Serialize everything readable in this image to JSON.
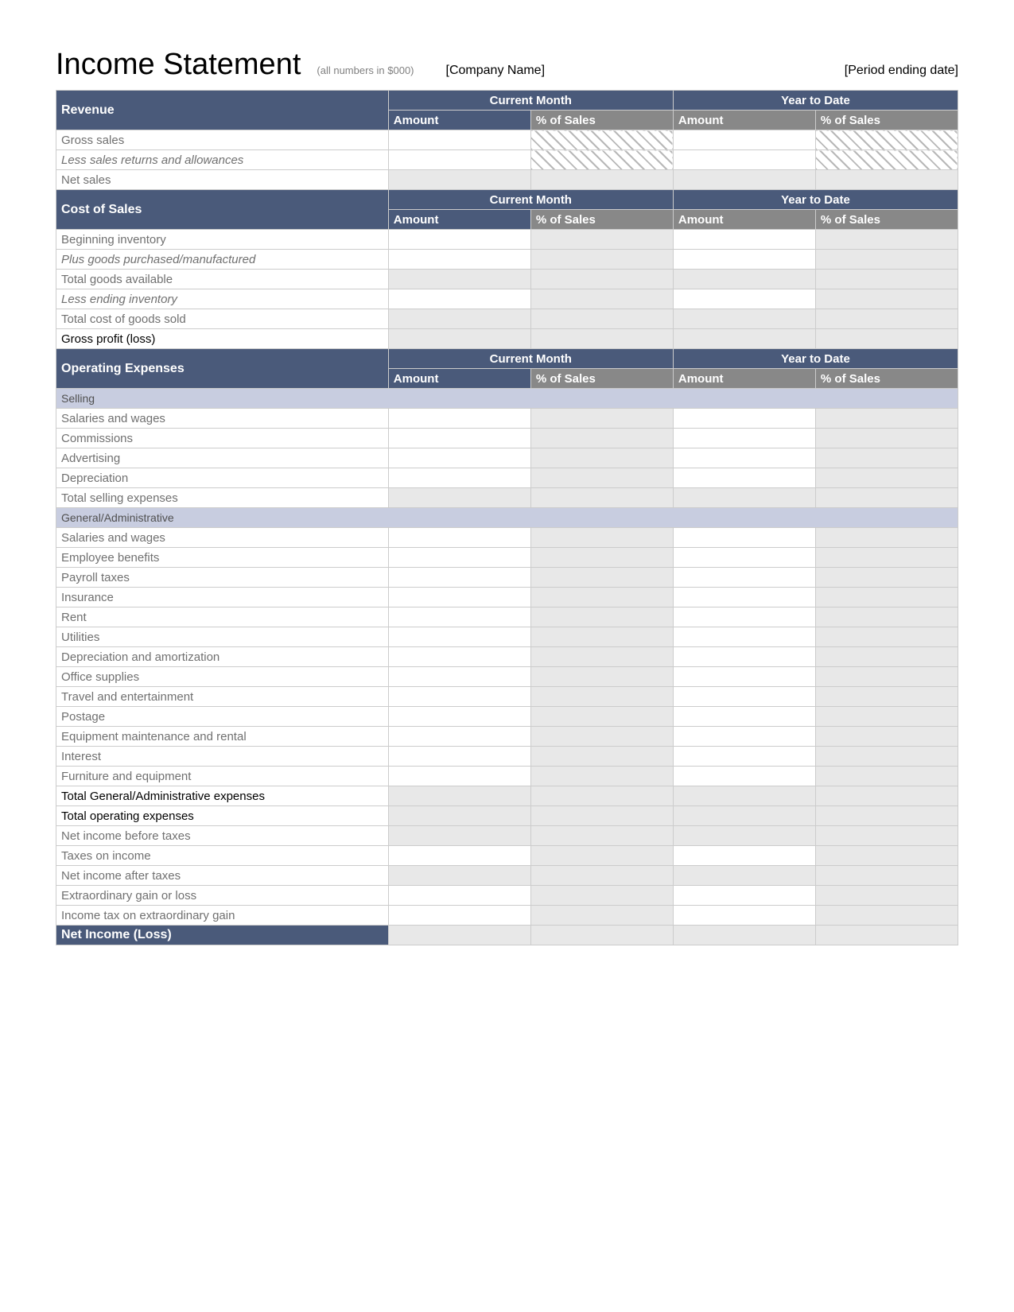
{
  "header": {
    "title": "Income Statement",
    "subtitle": "(all numbers in $000)",
    "company": "[Company Name]",
    "period": "[Period ending date]"
  },
  "columns": {
    "period1": "Current Month",
    "period2": "Year to Date",
    "amount": "Amount",
    "pct": "% of Sales"
  },
  "colors": {
    "section_bg": "#4a5a7a",
    "col_header_bg": "#888888",
    "subsection_bg": "#c8cde0",
    "shaded_bg": "#e8e8e8",
    "border": "#cccccc",
    "label_text": "#707070",
    "hatch_fg": "#b8b8b8",
    "hatch_bg": "#ffffff"
  },
  "sections": [
    {
      "key": "revenue",
      "title": "Revenue",
      "rows": [
        {
          "label": "Gross sales",
          "style": "row-label",
          "cells": [
            "",
            "hatched",
            "",
            "hatched"
          ]
        },
        {
          "label": "Less sales returns and allowances",
          "style": "row-italic",
          "cells": [
            "",
            "hatched",
            "",
            "hatched"
          ]
        },
        {
          "label": "Net sales",
          "style": "row-label",
          "cells": [
            "shaded",
            "shaded",
            "shaded",
            "shaded"
          ]
        }
      ]
    },
    {
      "key": "cost_of_sales",
      "title": "Cost of Sales",
      "rows": [
        {
          "label": "Beginning inventory",
          "style": "row-label",
          "cells": [
            "",
            "shaded",
            "",
            "shaded"
          ]
        },
        {
          "label": "Plus goods purchased/manufactured",
          "style": "row-italic",
          "cells": [
            "",
            "shaded",
            "",
            "shaded"
          ]
        },
        {
          "label": "Total goods available",
          "style": "row-label",
          "cells": [
            "shaded",
            "shaded",
            "shaded",
            "shaded"
          ]
        },
        {
          "label": "Less ending inventory",
          "style": "row-italic",
          "cells": [
            "",
            "shaded",
            "",
            "shaded"
          ]
        },
        {
          "label": "Total cost of goods sold",
          "style": "row-label",
          "cells": [
            "shaded",
            "shaded",
            "shaded",
            "shaded"
          ]
        },
        {
          "label": "Gross profit (loss)",
          "style": "row-bold",
          "cells": [
            "shaded",
            "shaded",
            "shaded",
            "shaded"
          ]
        }
      ]
    },
    {
      "key": "operating_expenses",
      "title": "Operating Expenses",
      "subsections": [
        {
          "title": "Selling",
          "rows": [
            {
              "label": "Salaries and wages",
              "style": "row-label",
              "cells": [
                "",
                "shaded",
                "",
                "shaded"
              ]
            },
            {
              "label": "Commissions",
              "style": "row-label",
              "cells": [
                "",
                "shaded",
                "",
                "shaded"
              ]
            },
            {
              "label": "Advertising",
              "style": "row-label",
              "cells": [
                "",
                "shaded",
                "",
                "shaded"
              ]
            },
            {
              "label": "Depreciation",
              "style": "row-label",
              "cells": [
                "",
                "shaded",
                "",
                "shaded"
              ]
            },
            {
              "label": "Total selling expenses",
              "style": "row-label",
              "cells": [
                "shaded",
                "shaded",
                "shaded",
                "shaded"
              ]
            }
          ]
        },
        {
          "title": "General/Administrative",
          "rows": [
            {
              "label": "Salaries and wages",
              "style": "row-label",
              "cells": [
                "",
                "shaded",
                "",
                "shaded"
              ]
            },
            {
              "label": "Employee benefits",
              "style": "row-label",
              "cells": [
                "",
                "shaded",
                "",
                "shaded"
              ]
            },
            {
              "label": "Payroll taxes",
              "style": "row-label",
              "cells": [
                "",
                "shaded",
                "",
                "shaded"
              ]
            },
            {
              "label": "Insurance",
              "style": "row-label",
              "cells": [
                "",
                "shaded",
                "",
                "shaded"
              ]
            },
            {
              "label": "Rent",
              "style": "row-label",
              "cells": [
                "",
                "shaded",
                "",
                "shaded"
              ]
            },
            {
              "label": "Utilities",
              "style": "row-label",
              "cells": [
                "",
                "shaded",
                "",
                "shaded"
              ]
            },
            {
              "label": "Depreciation and amortization",
              "style": "row-label",
              "cells": [
                "",
                "shaded",
                "",
                "shaded"
              ]
            },
            {
              "label": "Office supplies",
              "style": "row-label",
              "cells": [
                "",
                "shaded",
                "",
                "shaded"
              ]
            },
            {
              "label": "Travel and entertainment",
              "style": "row-label",
              "cells": [
                "",
                "shaded",
                "",
                "shaded"
              ]
            },
            {
              "label": "Postage",
              "style": "row-label",
              "cells": [
                "",
                "shaded",
                "",
                "shaded"
              ]
            },
            {
              "label": "Equipment maintenance and rental",
              "style": "row-label",
              "cells": [
                "",
                "shaded",
                "",
                "shaded"
              ]
            },
            {
              "label": "Interest",
              "style": "row-label",
              "cells": [
                "",
                "shaded",
                "",
                "shaded"
              ]
            },
            {
              "label": "Furniture and equipment",
              "style": "row-label",
              "cells": [
                "",
                "shaded",
                "",
                "shaded"
              ]
            },
            {
              "label": "Total General/Administrative expenses",
              "style": "row-total-bold",
              "cells": [
                "shaded",
                "shaded",
                "shaded",
                "shaded"
              ]
            }
          ]
        }
      ],
      "trailing_rows": [
        {
          "label": "Total operating expenses",
          "style": "row-total-bold",
          "cells": [
            "shaded",
            "shaded",
            "shaded",
            "shaded"
          ]
        },
        {
          "label": "Net income before taxes",
          "style": "row-label",
          "cells": [
            "shaded",
            "shaded",
            "shaded",
            "shaded"
          ]
        },
        {
          "label": "Taxes on income",
          "style": "row-label",
          "cells": [
            "",
            "shaded",
            "",
            "shaded"
          ]
        },
        {
          "label": "Net income after taxes",
          "style": "row-label",
          "cells": [
            "shaded",
            "shaded",
            "shaded",
            "shaded"
          ]
        },
        {
          "label": "Extraordinary gain or loss",
          "style": "row-label",
          "cells": [
            "",
            "shaded",
            "",
            "shaded"
          ]
        },
        {
          "label": "Income tax on extraordinary gain",
          "style": "row-label",
          "cells": [
            "",
            "shaded",
            "",
            "shaded"
          ]
        }
      ]
    }
  ],
  "net_income": {
    "label": "Net Income (Loss)"
  }
}
